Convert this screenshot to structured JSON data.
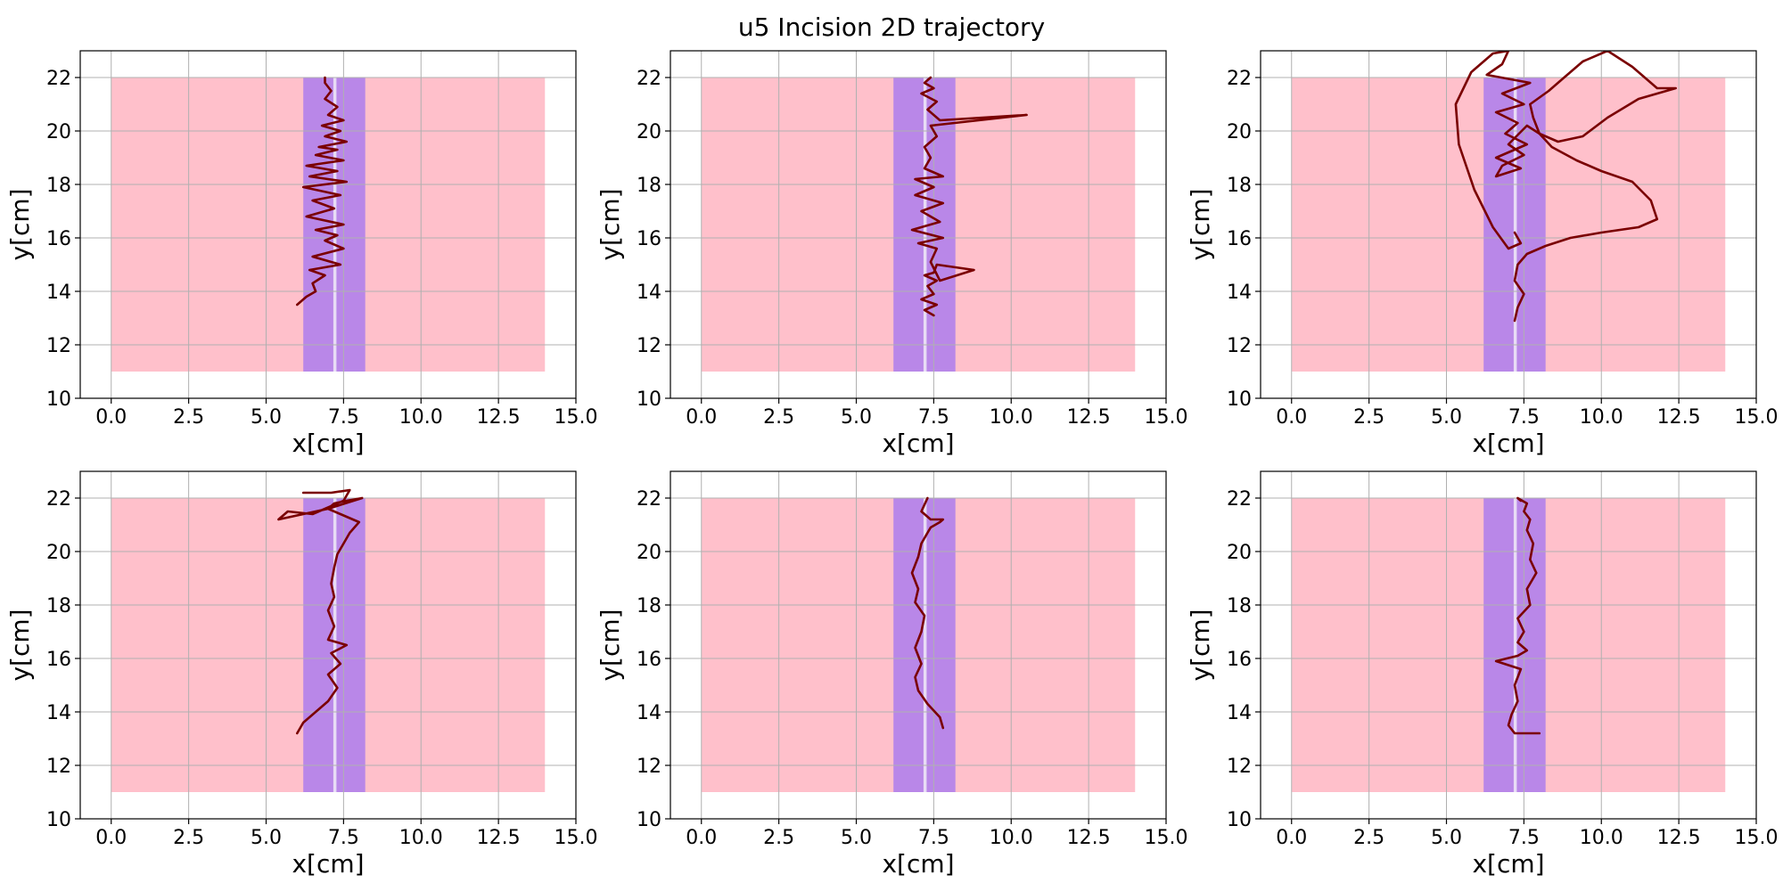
{
  "figure": {
    "title": "u5 Incision 2D trajectory"
  },
  "chart_data": [
    {
      "type": "line",
      "xlabel": "x[cm]",
      "ylabel": "y[cm]",
      "xlim": [
        -1,
        15
      ],
      "ylim": [
        10,
        23
      ],
      "xticks": [
        0.0,
        2.5,
        5.0,
        7.5,
        10.0,
        12.5,
        15.0
      ],
      "xtick_labels": [
        "0.0",
        "2.5",
        "5.0",
        "7.5",
        "10.0",
        "12.5",
        "15.0"
      ],
      "yticks": [
        10,
        12,
        14,
        16,
        18,
        20,
        22
      ],
      "ytick_labels": [
        "10",
        "12",
        "14",
        "16",
        "18",
        "20",
        "22"
      ],
      "grid": true,
      "regions": [
        {
          "x": [
            0,
            14
          ],
          "y": [
            11,
            22
          ],
          "color": "#ffc0cb"
        },
        {
          "x": [
            6.2,
            8.2
          ],
          "y": [
            11,
            22
          ],
          "color": "#b987e8"
        },
        {
          "x": [
            7.17,
            7.27
          ],
          "y": [
            11,
            22
          ],
          "color": "#e8dcf5"
        }
      ],
      "trajectory_color": "#7a0000",
      "x": [
        6.0,
        6.3,
        6.6,
        6.5,
        6.9,
        6.4,
        7.4,
        6.5,
        7.5,
        6.9,
        7.3,
        6.6,
        7.5,
        6.3,
        7.2,
        6.5,
        7.4,
        6.2,
        7.6,
        6.4,
        7.3,
        6.3,
        7.5,
        6.6,
        7.3,
        6.7,
        7.6,
        6.9,
        7.4,
        6.8,
        7.5,
        7.0,
        7.3,
        6.9,
        7.1,
        6.9,
        6.9
      ],
      "y": [
        13.5,
        13.8,
        14.0,
        14.3,
        14.6,
        14.8,
        15.0,
        15.3,
        15.6,
        15.9,
        16.1,
        16.3,
        16.5,
        16.8,
        17.1,
        17.4,
        17.6,
        17.9,
        18.1,
        18.3,
        18.5,
        18.7,
        18.9,
        19.1,
        19.3,
        19.4,
        19.6,
        19.8,
        20.0,
        20.2,
        20.4,
        20.6,
        20.9,
        21.2,
        21.5,
        21.8,
        22.0
      ]
    },
    {
      "type": "line",
      "xlabel": "x[cm]",
      "ylabel": "y[cm]",
      "xlim": [
        -1,
        15
      ],
      "ylim": [
        10,
        23
      ],
      "xticks": [
        0.0,
        2.5,
        5.0,
        7.5,
        10.0,
        12.5,
        15.0
      ],
      "xtick_labels": [
        "0.0",
        "2.5",
        "5.0",
        "7.5",
        "10.0",
        "12.5",
        "15.0"
      ],
      "yticks": [
        10,
        12,
        14,
        16,
        18,
        20,
        22
      ],
      "ytick_labels": [
        "10",
        "12",
        "14",
        "16",
        "18",
        "20",
        "22"
      ],
      "grid": true,
      "regions": [
        {
          "x": [
            0,
            14
          ],
          "y": [
            11,
            22
          ],
          "color": "#ffc0cb"
        },
        {
          "x": [
            6.2,
            8.2
          ],
          "y": [
            11,
            22
          ],
          "color": "#b987e8"
        },
        {
          "x": [
            7.17,
            7.27
          ],
          "y": [
            11,
            22
          ],
          "color": "#e8dcf5"
        }
      ],
      "trajectory_color": "#7a0000",
      "x": [
        7.5,
        7.2,
        7.6,
        7.1,
        7.5,
        7.3,
        7.6,
        7.2,
        7.5,
        7.6,
        8.8,
        7.7,
        7.4,
        7.6,
        7.0,
        7.8,
        6.8,
        7.7,
        7.1,
        7.8,
        6.9,
        7.5,
        6.9,
        7.8,
        7.2,
        7.4,
        7.2,
        7.6,
        7.4,
        10.5,
        7.7,
        7.3,
        7.6,
        7.1,
        7.5,
        7.2,
        7.4,
        7.3
      ],
      "y": [
        13.1,
        13.3,
        13.5,
        13.7,
        13.9,
        14.2,
        14.4,
        14.6,
        14.7,
        15.0,
        14.8,
        14.4,
        15.1,
        15.6,
        15.8,
        16.0,
        16.3,
        16.6,
        17.0,
        17.3,
        17.6,
        17.9,
        18.2,
        18.3,
        18.6,
        19.0,
        19.4,
        19.8,
        20.2,
        20.6,
        20.4,
        20.8,
        21.1,
        21.4,
        21.6,
        21.8,
        22.0,
        21.9
      ]
    },
    {
      "type": "line",
      "xlabel": "x[cm]",
      "ylabel": "y[cm]",
      "xlim": [
        -1,
        15
      ],
      "ylim": [
        10,
        23
      ],
      "xticks": [
        0.0,
        2.5,
        5.0,
        7.5,
        10.0,
        12.5,
        15.0
      ],
      "xtick_labels": [
        "0.0",
        "2.5",
        "5.0",
        "7.5",
        "10.0",
        "12.5",
        "15.0"
      ],
      "yticks": [
        10,
        12,
        14,
        16,
        18,
        20,
        22
      ],
      "ytick_labels": [
        "10",
        "12",
        "14",
        "16",
        "18",
        "20",
        "22"
      ],
      "grid": true,
      "regions": [
        {
          "x": [
            0,
            14
          ],
          "y": [
            11,
            22
          ],
          "color": "#ffc0cb"
        },
        {
          "x": [
            6.2,
            8.2
          ],
          "y": [
            11,
            22
          ],
          "color": "#b987e8"
        },
        {
          "x": [
            7.17,
            7.27
          ],
          "y": [
            11,
            22
          ],
          "color": "#e8dcf5"
        }
      ],
      "trajectory_color": "#7a0000",
      "x": [
        7.2,
        7.3,
        7.5,
        7.2,
        7.3,
        7.6,
        8.2,
        9.0,
        10.0,
        11.2,
        11.8,
        11.6,
        11.0,
        10.0,
        9.2,
        8.4,
        8.0,
        7.8,
        7.7,
        8.3,
        8.8,
        9.4,
        10.2,
        11.0,
        11.8,
        12.4,
        11.2,
        10.2,
        9.4,
        8.6,
        8.0,
        7.6,
        7.0,
        7.5,
        6.8,
        6.6,
        7.4,
        6.6,
        7.6,
        6.9,
        7.3,
        6.6,
        7.5,
        6.8,
        7.7,
        6.3,
        6.8,
        7.0,
        6.5,
        5.8,
        5.3,
        5.4,
        5.9,
        6.5,
        7.0,
        7.4,
        7.2
      ],
      "y": [
        12.9,
        13.4,
        13.9,
        14.4,
        15.0,
        15.4,
        15.7,
        16.0,
        16.2,
        16.4,
        16.7,
        17.4,
        18.1,
        18.5,
        18.9,
        19.4,
        19.9,
        20.5,
        21.0,
        21.5,
        22.0,
        22.6,
        23.0,
        22.4,
        21.6,
        21.6,
        21.2,
        20.5,
        19.8,
        19.6,
        19.9,
        20.2,
        19.5,
        19.1,
        18.7,
        18.3,
        18.6,
        19.0,
        19.5,
        19.9,
        20.3,
        20.7,
        21.0,
        21.4,
        21.8,
        22.1,
        22.5,
        23.0,
        22.9,
        22.2,
        21.0,
        19.5,
        17.8,
        16.4,
        15.6,
        15.8,
        16.2
      ]
    },
    {
      "type": "line",
      "xlabel": "x[cm]",
      "ylabel": "y[cm]",
      "xlim": [
        -1,
        15
      ],
      "ylim": [
        10,
        23
      ],
      "xticks": [
        0.0,
        2.5,
        5.0,
        7.5,
        10.0,
        12.5,
        15.0
      ],
      "xtick_labels": [
        "0.0",
        "2.5",
        "5.0",
        "7.5",
        "10.0",
        "12.5",
        "15.0"
      ],
      "yticks": [
        10,
        12,
        14,
        16,
        18,
        20,
        22
      ],
      "ytick_labels": [
        "10",
        "12",
        "14",
        "16",
        "18",
        "20",
        "22"
      ],
      "grid": true,
      "regions": [
        {
          "x": [
            0,
            14
          ],
          "y": [
            11,
            22
          ],
          "color": "#ffc0cb"
        },
        {
          "x": [
            6.2,
            8.2
          ],
          "y": [
            11,
            22
          ],
          "color": "#b987e8"
        },
        {
          "x": [
            7.17,
            7.27
          ],
          "y": [
            11,
            22
          ],
          "color": "#e8dcf5"
        }
      ],
      "trajectory_color": "#7a0000",
      "x": [
        6.0,
        6.2,
        6.6,
        7.0,
        7.3,
        7.0,
        7.4,
        7.1,
        7.6,
        7.0,
        7.2,
        7.0,
        7.2,
        7.1,
        7.2,
        7.3,
        7.5,
        7.7,
        8.0,
        7.4,
        7.0,
        7.2,
        7.6,
        8.1,
        7.0,
        6.2,
        5.4,
        5.7,
        6.5,
        7.5,
        7.7,
        7.1,
        6.2
      ],
      "y": [
        13.2,
        13.6,
        14.0,
        14.4,
        14.9,
        15.4,
        15.8,
        16.2,
        16.5,
        16.7,
        17.2,
        17.8,
        18.3,
        18.8,
        19.4,
        19.9,
        20.3,
        20.7,
        21.1,
        21.4,
        21.6,
        21.8,
        21.9,
        22.0,
        21.6,
        21.4,
        21.2,
        21.5,
        21.4,
        21.9,
        22.3,
        22.2,
        22.2
      ]
    },
    {
      "type": "line",
      "xlabel": "x[cm]",
      "ylabel": "y[cm]",
      "xlim": [
        -1,
        15
      ],
      "ylim": [
        10,
        23
      ],
      "xticks": [
        0.0,
        2.5,
        5.0,
        7.5,
        10.0,
        12.5,
        15.0
      ],
      "xtick_labels": [
        "0.0",
        "2.5",
        "5.0",
        "7.5",
        "10.0",
        "12.5",
        "15.0"
      ],
      "yticks": [
        10,
        12,
        14,
        16,
        18,
        20,
        22
      ],
      "ytick_labels": [
        "10",
        "12",
        "14",
        "16",
        "18",
        "20",
        "22"
      ],
      "grid": true,
      "regions": [
        {
          "x": [
            0,
            14
          ],
          "y": [
            11,
            22
          ],
          "color": "#ffc0cb"
        },
        {
          "x": [
            6.2,
            8.2
          ],
          "y": [
            11,
            22
          ],
          "color": "#b987e8"
        },
        {
          "x": [
            7.17,
            7.27
          ],
          "y": [
            11,
            22
          ],
          "color": "#e8dcf5"
        }
      ],
      "trajectory_color": "#7a0000",
      "x": [
        7.8,
        7.7,
        7.3,
        7.0,
        6.9,
        7.1,
        6.9,
        7.1,
        7.2,
        6.9,
        7.0,
        6.8,
        7.0,
        7.1,
        7.3,
        7.4,
        7.7,
        7.8,
        7.4,
        7.1,
        7.3
      ],
      "y": [
        13.4,
        13.8,
        14.3,
        14.8,
        15.3,
        15.8,
        16.4,
        17.0,
        17.6,
        18.1,
        18.6,
        19.2,
        19.8,
        20.3,
        20.7,
        20.9,
        21.1,
        21.2,
        21.2,
        21.5,
        22.0
      ]
    },
    {
      "type": "line",
      "xlabel": "x[cm]",
      "ylabel": "y[cm]",
      "xlim": [
        -1,
        15
      ],
      "ylim": [
        10,
        23
      ],
      "xticks": [
        0.0,
        2.5,
        5.0,
        7.5,
        10.0,
        12.5,
        15.0
      ],
      "xtick_labels": [
        "0.0",
        "2.5",
        "5.0",
        "7.5",
        "10.0",
        "12.5",
        "15.0"
      ],
      "yticks": [
        10,
        12,
        14,
        16,
        18,
        20,
        22
      ],
      "ytick_labels": [
        "10",
        "12",
        "14",
        "16",
        "18",
        "20",
        "22"
      ],
      "grid": true,
      "regions": [
        {
          "x": [
            0,
            14
          ],
          "y": [
            11,
            22
          ],
          "color": "#ffc0cb"
        },
        {
          "x": [
            6.2,
            8.2
          ],
          "y": [
            11,
            22
          ],
          "color": "#b987e8"
        },
        {
          "x": [
            7.17,
            7.27
          ],
          "y": [
            11,
            22
          ],
          "color": "#e8dcf5"
        }
      ],
      "trajectory_color": "#7a0000",
      "x": [
        8.0,
        7.2,
        7.0,
        7.1,
        7.3,
        7.2,
        7.4,
        6.6,
        7.3,
        7.6,
        7.3,
        7.5,
        7.3,
        7.7,
        7.6,
        7.9,
        7.7,
        7.8,
        7.6,
        7.7,
        7.5,
        7.6,
        7.3,
        7.4
      ],
      "y": [
        13.2,
        13.2,
        13.5,
        13.9,
        14.4,
        15.0,
        15.6,
        15.9,
        16.1,
        16.3,
        16.6,
        17.0,
        17.5,
        18.0,
        18.6,
        19.2,
        19.7,
        20.3,
        20.8,
        21.2,
        21.5,
        21.8,
        22.0,
        21.9
      ]
    }
  ]
}
